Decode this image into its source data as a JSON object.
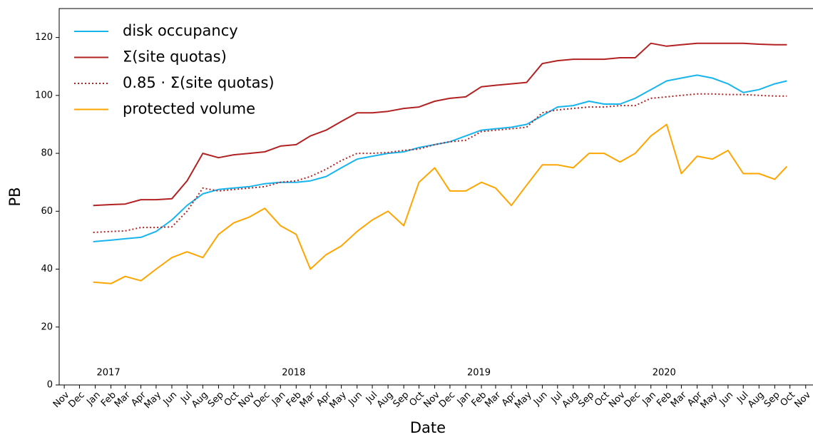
{
  "chart_data": {
    "type": "line",
    "xlabel": "Date",
    "ylabel": "PB",
    "x": [
      "2016-12-28",
      "2017-02-01",
      "2017-03-01",
      "2017-04-01",
      "2017-05-01",
      "2017-06-01",
      "2017-07-01",
      "2017-08-01",
      "2017-09-01",
      "2017-10-01",
      "2017-11-01",
      "2017-12-01",
      "2018-01-01",
      "2018-02-01",
      "2018-03-01",
      "2018-04-01",
      "2018-05-01",
      "2018-06-01",
      "2018-07-01",
      "2018-08-01",
      "2018-09-01",
      "2018-10-01",
      "2018-11-01",
      "2018-12-01",
      "2019-01-01",
      "2019-02-01",
      "2019-03-01",
      "2019-04-01",
      "2019-05-01",
      "2019-06-01",
      "2019-07-01",
      "2019-08-01",
      "2019-09-01",
      "2019-10-01",
      "2019-11-01",
      "2019-12-01",
      "2020-01-01",
      "2020-02-01",
      "2020-03-01",
      "2020-04-01",
      "2020-05-01",
      "2020-06-01",
      "2020-07-01",
      "2020-08-01",
      "2020-09-01",
      "2020-09-25"
    ],
    "series": [
      {
        "name": "disk occupancy",
        "color": "#17b5ee",
        "linestyle": "solid",
        "values": [
          49.5,
          50,
          50.5,
          51,
          53,
          57,
          62,
          66,
          67.5,
          68,
          68.5,
          69.5,
          70,
          70,
          70.5,
          72,
          75,
          78,
          79,
          80,
          80.5,
          82,
          83,
          84,
          86,
          88,
          88.5,
          89,
          90,
          93,
          96,
          96.5,
          98,
          97,
          97,
          99,
          102,
          105,
          106,
          107,
          106,
          104,
          101,
          102,
          104,
          105
        ]
      },
      {
        "name": "Σ(site quotas)",
        "color": "#b22222",
        "linestyle": "solid",
        "values": [
          62,
          62.3,
          62.5,
          64,
          64,
          64.3,
          70.5,
          80,
          78.5,
          79.5,
          80,
          80.5,
          82.5,
          83,
          86,
          88,
          91,
          94,
          94,
          94.5,
          95.5,
          96,
          98,
          99,
          99.5,
          103,
          103.5,
          104,
          104.5,
          111,
          112,
          112.5,
          112.5,
          112.5,
          113,
          113,
          118,
          117,
          117.5,
          118,
          118,
          118,
          118,
          117.7,
          117.5,
          117.5
        ]
      },
      {
        "name": "0.85 · Σ(site quotas)",
        "color": "#b22222",
        "linestyle": "dotted",
        "values": [
          52.7,
          53,
          53.2,
          54.4,
          54.4,
          54.6,
          60,
          68,
          67,
          67.5,
          68,
          68.5,
          70,
          70.5,
          72,
          74.5,
          77.5,
          80,
          80,
          80.3,
          81,
          81.5,
          83,
          84,
          84.5,
          87.5,
          88,
          88.5,
          89,
          94,
          95,
          95.5,
          96,
          96,
          96.5,
          96.5,
          99,
          99.5,
          100,
          100.5,
          100.5,
          100.3,
          100.3,
          100,
          99.8,
          99.8
        ]
      },
      {
        "name": "protected volume",
        "color": "#ffa500",
        "linestyle": "solid",
        "values": [
          35.5,
          35,
          37.5,
          36,
          40,
          44,
          46,
          44,
          52,
          56,
          58,
          61,
          55,
          52,
          40,
          45,
          48,
          53,
          57,
          60,
          55,
          70,
          75,
          67,
          67,
          70,
          68,
          62,
          69,
          76,
          76,
          75,
          80,
          80,
          77,
          80,
          86,
          90,
          73,
          79,
          78,
          81,
          73,
          73,
          71,
          75.5
        ]
      }
    ],
    "ylim": [
      0,
      130
    ],
    "yticks": [
      0,
      20,
      40,
      60,
      80,
      100,
      120
    ],
    "xlim": [
      "2016-10-22",
      "2020-11-14"
    ],
    "xticks": [
      {
        "value": "2016-11-01",
        "label": "Nov"
      },
      {
        "value": "2016-12-01",
        "label": "Dec"
      },
      {
        "value": "2017-01-01",
        "label": "Jan"
      },
      {
        "value": "2017-02-01",
        "label": "Feb"
      },
      {
        "value": "2017-03-01",
        "label": "Mar"
      },
      {
        "value": "2017-04-01",
        "label": "Apr"
      },
      {
        "value": "2017-05-01",
        "label": "May"
      },
      {
        "value": "2017-06-01",
        "label": "Jun"
      },
      {
        "value": "2017-07-01",
        "label": "Jul"
      },
      {
        "value": "2017-08-01",
        "label": "Aug"
      },
      {
        "value": "2017-09-01",
        "label": "Sep"
      },
      {
        "value": "2017-10-01",
        "label": "Oct"
      },
      {
        "value": "2017-11-01",
        "label": "Nov"
      },
      {
        "value": "2017-12-01",
        "label": "Dec"
      },
      {
        "value": "2018-01-01",
        "label": "Jan"
      },
      {
        "value": "2018-02-01",
        "label": "Feb"
      },
      {
        "value": "2018-03-01",
        "label": "Mar"
      },
      {
        "value": "2018-04-01",
        "label": "Apr"
      },
      {
        "value": "2018-05-01",
        "label": "May"
      },
      {
        "value": "2018-06-01",
        "label": "Jun"
      },
      {
        "value": "2018-07-01",
        "label": "Jul"
      },
      {
        "value": "2018-08-01",
        "label": "Aug"
      },
      {
        "value": "2018-09-01",
        "label": "Sep"
      },
      {
        "value": "2018-10-01",
        "label": "Oct"
      },
      {
        "value": "2018-11-01",
        "label": "Nov"
      },
      {
        "value": "2018-12-01",
        "label": "Dec"
      },
      {
        "value": "2019-01-01",
        "label": "Jan"
      },
      {
        "value": "2019-02-01",
        "label": "Feb"
      },
      {
        "value": "2019-03-01",
        "label": "Mar"
      },
      {
        "value": "2019-04-01",
        "label": "Apr"
      },
      {
        "value": "2019-05-01",
        "label": "May"
      },
      {
        "value": "2019-06-01",
        "label": "Jun"
      },
      {
        "value": "2019-07-01",
        "label": "Jul"
      },
      {
        "value": "2019-08-01",
        "label": "Aug"
      },
      {
        "value": "2019-09-01",
        "label": "Sep"
      },
      {
        "value": "2019-10-01",
        "label": "Oct"
      },
      {
        "value": "2019-11-01",
        "label": "Nov"
      },
      {
        "value": "2019-12-01",
        "label": "Dec"
      },
      {
        "value": "2020-01-01",
        "label": "Jan"
      },
      {
        "value": "2020-02-01",
        "label": "Feb"
      },
      {
        "value": "2020-03-01",
        "label": "Mar"
      },
      {
        "value": "2020-04-01",
        "label": "Apr"
      },
      {
        "value": "2020-05-01",
        "label": "May"
      },
      {
        "value": "2020-06-01",
        "label": "Jun"
      },
      {
        "value": "2020-07-01",
        "label": "Jul"
      },
      {
        "value": "2020-08-01",
        "label": "Aug"
      },
      {
        "value": "2020-09-01",
        "label": "Sep"
      },
      {
        "value": "2020-10-01",
        "label": "Oct"
      },
      {
        "value": "2020-11-01",
        "label": "Nov"
      }
    ],
    "annotations": [
      {
        "text": "2017",
        "x": "2017-01-01"
      },
      {
        "text": "2018",
        "x": "2018-01-01"
      },
      {
        "text": "2019",
        "x": "2019-01-01"
      },
      {
        "text": "2020",
        "x": "2020-01-01"
      }
    ],
    "legend": "upper left",
    "grid": false
  }
}
